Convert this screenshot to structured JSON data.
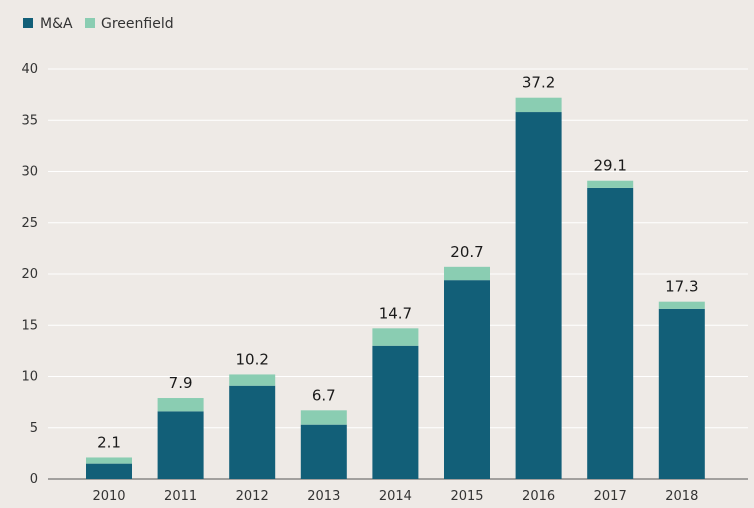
{
  "chart_data": {
    "type": "bar",
    "stacked": true,
    "categories": [
      "2010",
      "2011",
      "2012",
      "2013",
      "2014",
      "2015",
      "2016",
      "2017",
      "2018"
    ],
    "series": [
      {
        "name": "M&A",
        "color": "#125f78",
        "values": [
          1.5,
          6.6,
          9.1,
          5.3,
          13.0,
          19.4,
          35.8,
          28.4,
          16.6
        ]
      },
      {
        "name": "Greenfield",
        "color": "#8acdb2",
        "values": [
          0.6,
          1.3,
          1.1,
          1.4,
          1.7,
          1.3,
          1.4,
          0.7,
          0.7
        ]
      }
    ],
    "totals": [
      "2.1",
      "7.9",
      "10.2",
      "6.7",
      "14.7",
      "20.7",
      "37.2",
      "29.1",
      "17.3"
    ],
    "yticks": [
      "0",
      "5",
      "10",
      "15",
      "20",
      "25",
      "30",
      "35",
      "40"
    ],
    "ylim": [
      0,
      40
    ],
    "grid": true,
    "legend_position": "top-left",
    "title": "",
    "xlabel": "",
    "ylabel": ""
  }
}
